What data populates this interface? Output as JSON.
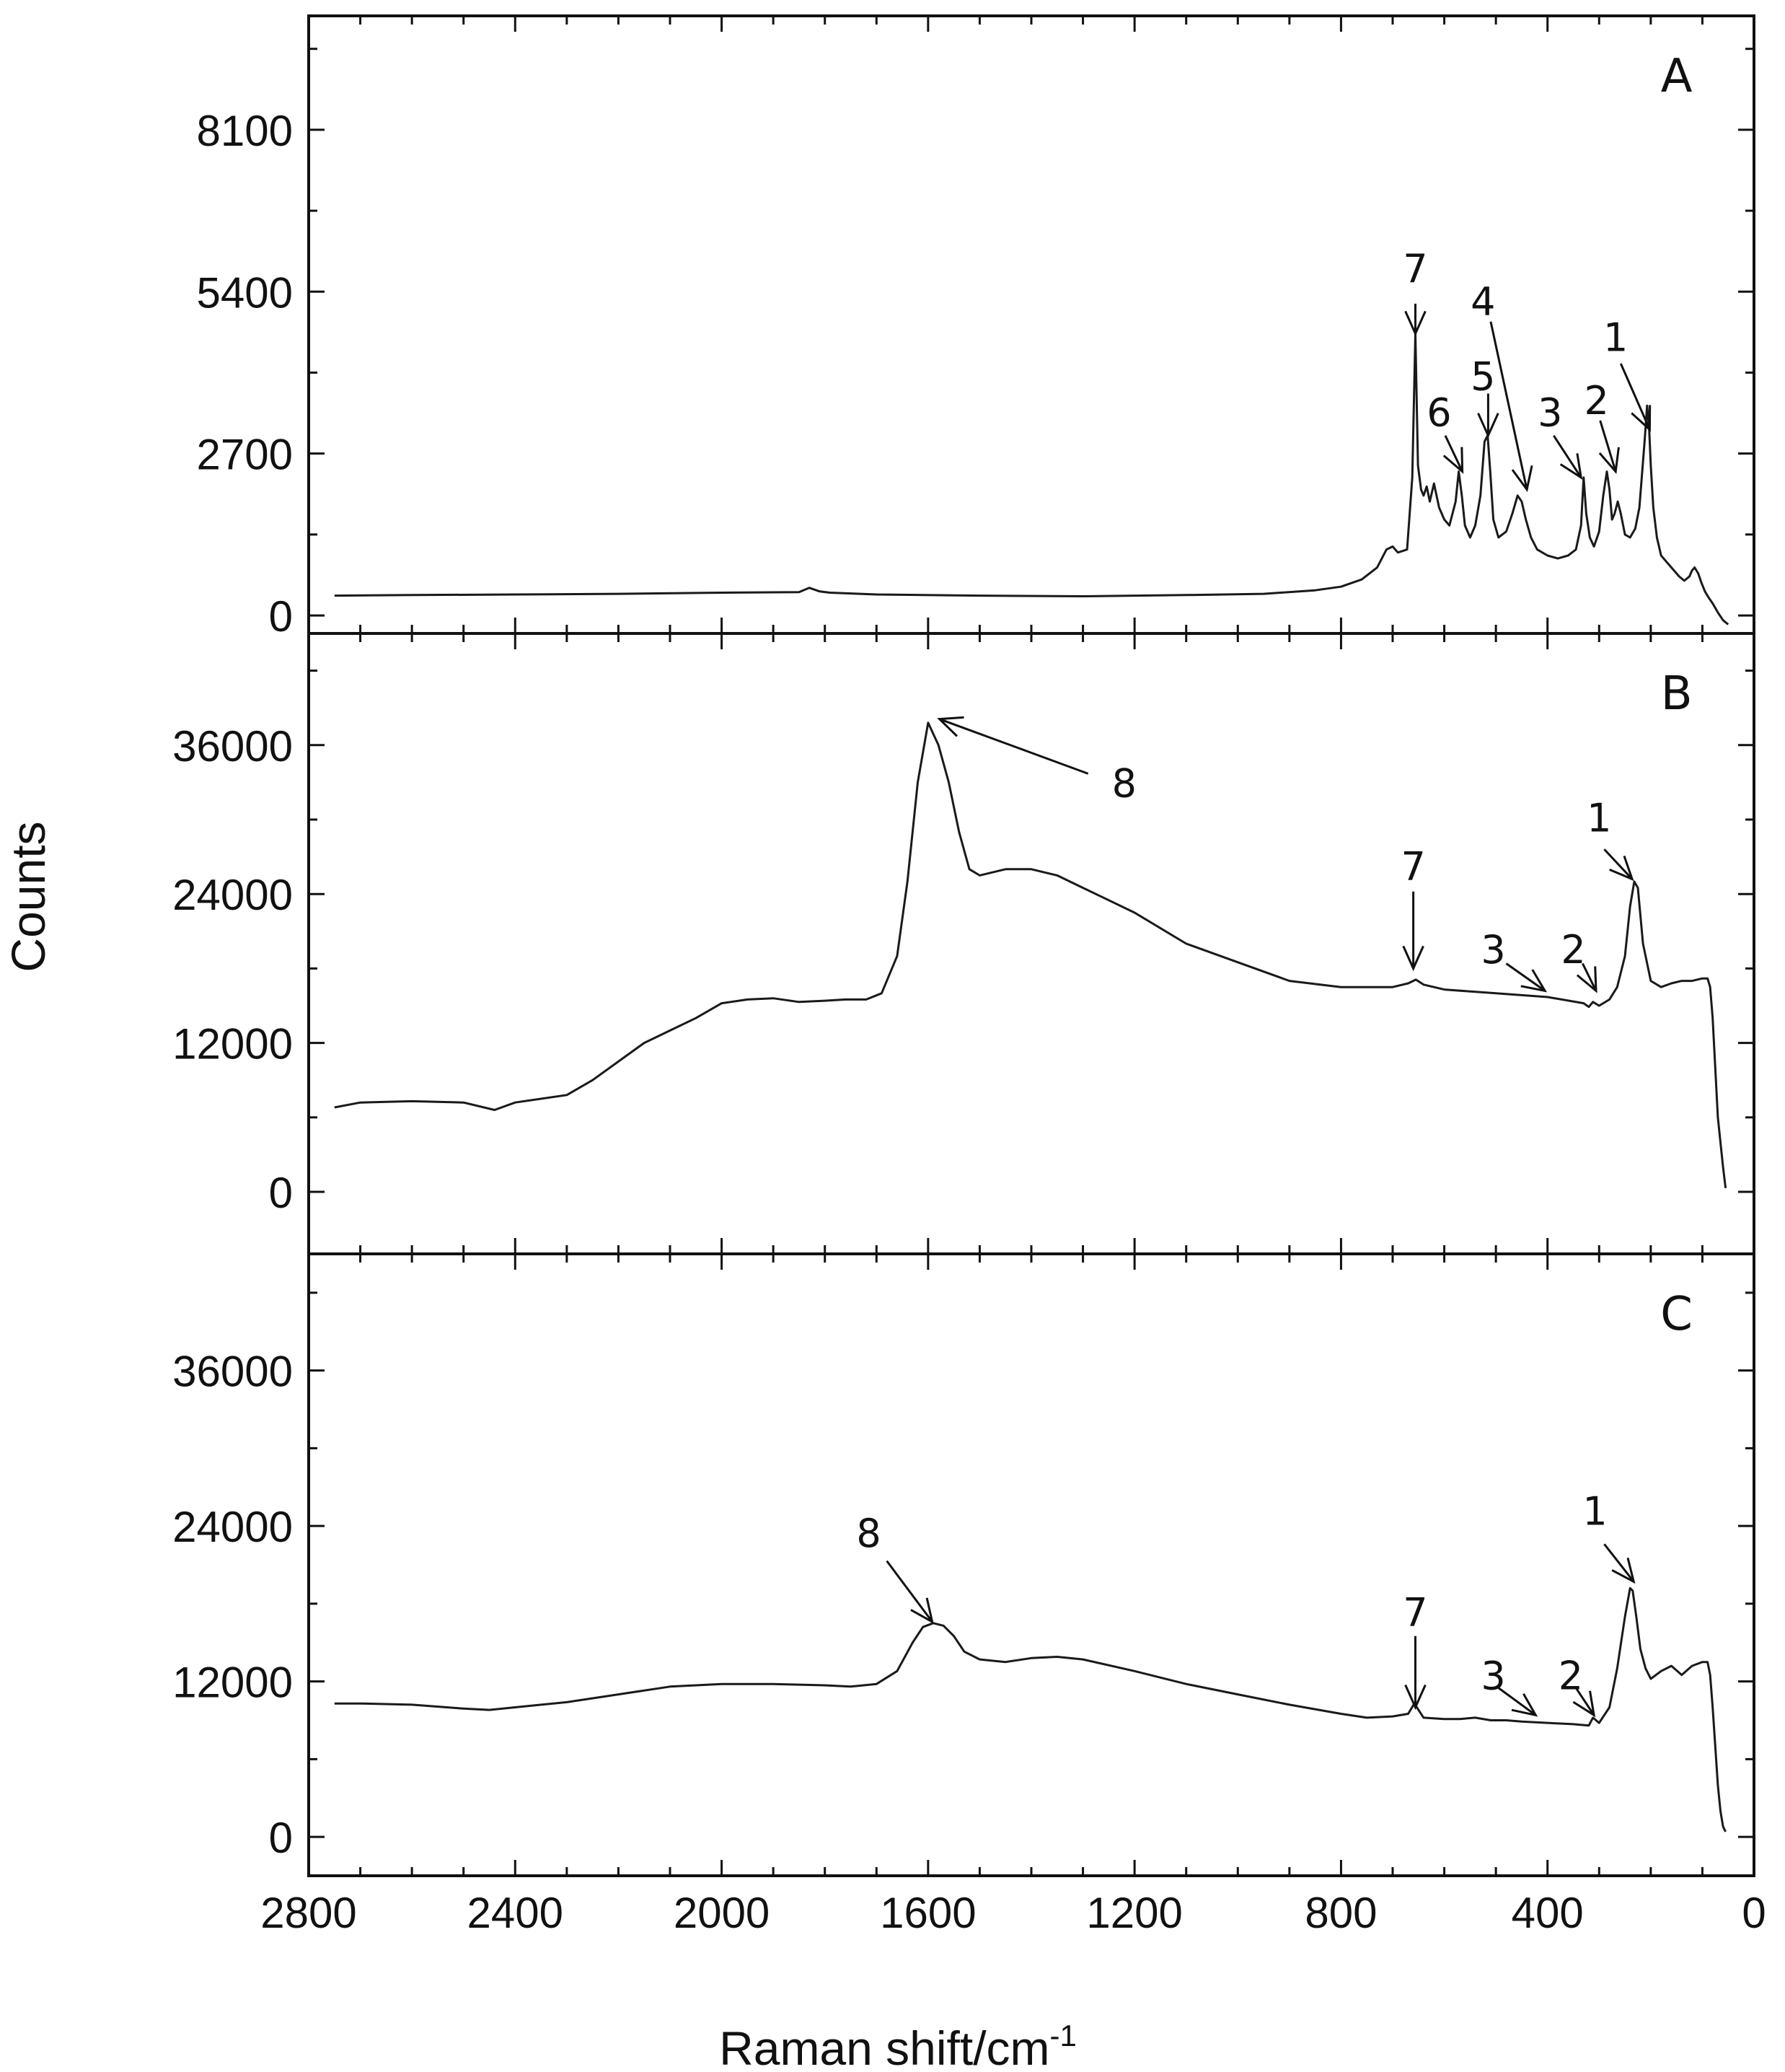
{
  "figure": {
    "ylabel": "Counts",
    "xlabel_main": "Raman shift/cm",
    "xlabel_sup": "-1",
    "x_ticks": [
      "2800",
      "2400",
      "2000",
      "1600",
      "1200",
      "800",
      "400",
      "0"
    ]
  },
  "chart_data": [
    {
      "type": "line",
      "panel": "A",
      "xlim": [
        2800,
        0
      ],
      "ylim": [
        -300,
        10000
      ],
      "y_ticks": [
        "8100",
        "5400",
        "2700",
        "0"
      ],
      "y_tick_values": [
        8100,
        5400,
        2700,
        0
      ],
      "series": [
        {
          "x": [
            2750,
            2600,
            2400,
            2200,
            2000,
            1850,
            1830,
            1810,
            1790,
            1700,
            1500,
            1300,
            1100,
            950,
            850,
            800,
            760,
            730,
            712,
            700,
            690,
            672,
            662,
            656,
            651,
            645,
            640,
            634,
            628,
            620,
            610,
            600,
            590,
            578,
            572,
            566,
            560,
            550,
            540,
            530,
            522,
            516,
            511,
            505,
            495,
            480,
            468,
            458,
            450,
            442,
            432,
            420,
            400,
            380,
            360,
            345,
            335,
            330,
            325,
            318,
            310,
            300,
            292,
            285,
            280,
            275,
            270,
            264,
            258,
            250,
            240,
            230,
            222,
            212,
            207,
            203,
            200,
            195,
            188,
            180,
            170,
            160,
            145,
            135,
            125,
            120,
            115,
            108,
            102,
            95,
            88,
            80,
            70,
            60,
            50
          ],
          "y": [
            330,
            340,
            350,
            360,
            380,
            390,
            460,
            400,
            380,
            350,
            330,
            320,
            340,
            360,
            420,
            480,
            600,
            800,
            1100,
            1150,
            1050,
            1100,
            2300,
            4700,
            2500,
            2100,
            2000,
            2150,
            1900,
            2200,
            1800,
            1600,
            1500,
            1900,
            2400,
            2000,
            1500,
            1300,
            1500,
            2000,
            2900,
            3000,
            2400,
            1600,
            1300,
            1400,
            1700,
            2000,
            1900,
            1600,
            1300,
            1100,
            1000,
            950,
            1000,
            1100,
            1500,
            2300,
            1700,
            1300,
            1150,
            1400,
            2000,
            2400,
            2100,
            1600,
            1700,
            1900,
            1700,
            1350,
            1300,
            1450,
            1800,
            2900,
            3500,
            3100,
            2500,
            1800,
            1300,
            1000,
            900,
            800,
            650,
            580,
            650,
            750,
            800,
            700,
            550,
            400,
            300,
            200,
            50,
            -80,
            -150
          ]
        }
      ],
      "annotations": [
        "7",
        "6",
        "5",
        "4",
        "3",
        "2",
        "1"
      ]
    },
    {
      "type": "line",
      "panel": "B",
      "xlim": [
        2800,
        0
      ],
      "ylim": [
        -5000,
        45000
      ],
      "y_ticks": [
        "36000",
        "24000",
        "12000",
        "0"
      ],
      "y_tick_values": [
        36000,
        24000,
        12000,
        0
      ],
      "series": [
        {
          "x": [
            2750,
            2700,
            2600,
            2500,
            2440,
            2400,
            2300,
            2250,
            2200,
            2150,
            2100,
            2050,
            2000,
            1950,
            1900,
            1850,
            1800,
            1760,
            1720,
            1690,
            1660,
            1640,
            1620,
            1600,
            1580,
            1560,
            1540,
            1520,
            1500,
            1450,
            1400,
            1350,
            1300,
            1200,
            1100,
            1000,
            900,
            800,
            750,
            700,
            670,
            655,
            640,
            600,
            500,
            400,
            330,
            320,
            312,
            300,
            280,
            265,
            250,
            240,
            232,
            225,
            215,
            200,
            180,
            160,
            140,
            120,
            100,
            90,
            85,
            80,
            75,
            70,
            60,
            55
          ],
          "y": [
            6800,
            7200,
            7300,
            7200,
            6600,
            7200,
            7800,
            9000,
            10500,
            12000,
            13000,
            14000,
            15200,
            15500,
            15600,
            15300,
            15400,
            15500,
            15500,
            16000,
            19000,
            25000,
            33000,
            37800,
            36000,
            33000,
            29000,
            26000,
            25500,
            26000,
            26000,
            25500,
            24500,
            22500,
            20000,
            18500,
            17000,
            16500,
            16500,
            16500,
            16800,
            17100,
            16700,
            16300,
            16000,
            15700,
            15200,
            14900,
            15300,
            15000,
            15500,
            16500,
            19000,
            23000,
            25000,
            24500,
            20000,
            17000,
            16500,
            16800,
            17000,
            17000,
            17200,
            17200,
            16500,
            14000,
            10000,
            6000,
            2000,
            300
          ]
        }
      ],
      "annotations": [
        "8",
        "7",
        "3",
        "2",
        "1"
      ]
    },
    {
      "type": "line",
      "panel": "C",
      "xlim": [
        2800,
        0
      ],
      "ylim": [
        -3000,
        45000
      ],
      "y_ticks": [
        "36000",
        "24000",
        "12000",
        "0"
      ],
      "y_tick_values": [
        36000,
        24000,
        12000,
        0
      ],
      "series": [
        {
          "x": [
            2750,
            2700,
            2600,
            2500,
            2450,
            2400,
            2300,
            2200,
            2100,
            2000,
            1900,
            1800,
            1750,
            1700,
            1660,
            1630,
            1610,
            1590,
            1570,
            1550,
            1530,
            1500,
            1450,
            1400,
            1350,
            1300,
            1200,
            1100,
            1000,
            900,
            800,
            750,
            700,
            670,
            658,
            650,
            640,
            600,
            570,
            540,
            510,
            480,
            450,
            400,
            350,
            320,
            312,
            300,
            280,
            265,
            250,
            240,
            235,
            228,
            220,
            210,
            200,
            180,
            160,
            140,
            120,
            100,
            90,
            85,
            80,
            75,
            70,
            65,
            60,
            55
          ],
          "y": [
            10300,
            10300,
            10200,
            9900,
            9800,
            10000,
            10400,
            11000,
            11600,
            11800,
            11800,
            11700,
            11600,
            11800,
            12800,
            15000,
            16200,
            16500,
            16300,
            15500,
            14300,
            13700,
            13500,
            13800,
            13900,
            13700,
            12800,
            11800,
            11000,
            10200,
            9500,
            9200,
            9300,
            9500,
            10300,
            9800,
            9200,
            9100,
            9100,
            9200,
            9000,
            9000,
            8900,
            8800,
            8700,
            8600,
            9200,
            8800,
            10000,
            13000,
            17000,
            19200,
            19000,
            17000,
            14500,
            13000,
            12200,
            12800,
            13200,
            12500,
            13200,
            13500,
            13500,
            12500,
            10000,
            7000,
            4000,
            2000,
            800,
            400
          ]
        }
      ],
      "annotations": [
        "8",
        "7",
        "3",
        "2",
        "1"
      ]
    }
  ]
}
